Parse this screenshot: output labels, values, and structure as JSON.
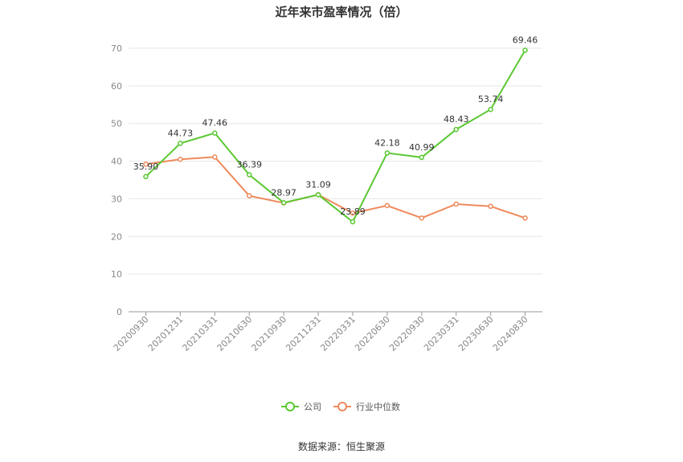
{
  "chart_data": {
    "type": "line",
    "title": "近年来市盈率情况（倍）",
    "categories": [
      "20200930",
      "20201231",
      "20210331",
      "20210630",
      "20210930",
      "20211231",
      "20220331",
      "20220630",
      "20220930",
      "20230331",
      "20230630",
      "20240830"
    ],
    "series": [
      {
        "name": "公司",
        "color": "#5ac832",
        "values": [
          35.9,
          44.73,
          47.46,
          36.39,
          28.97,
          31.09,
          23.89,
          42.18,
          40.99,
          48.43,
          53.74,
          69.46
        ],
        "labels": [
          "35.90",
          "44.73",
          "47.46",
          "36.39",
          "28.97",
          "31.09",
          "23.89",
          "42.18",
          "40.99",
          "48.43",
          "53.74",
          "69.46"
        ],
        "show_labels": true
      },
      {
        "name": "行业中位数",
        "color": "#ee8a5c",
        "values": [
          39.2,
          40.5,
          41.1,
          30.8,
          28.9,
          31.1,
          26.2,
          28.2,
          24.9,
          28.6,
          28.0,
          24.9
        ],
        "show_labels": false
      }
    ],
    "yticks": [
      0,
      10,
      20,
      30,
      40,
      50,
      60,
      70
    ],
    "ylim": [
      0,
      70
    ],
    "grid": true,
    "legend_position": "bottom-center"
  },
  "source": "数据来源：恒生聚源"
}
